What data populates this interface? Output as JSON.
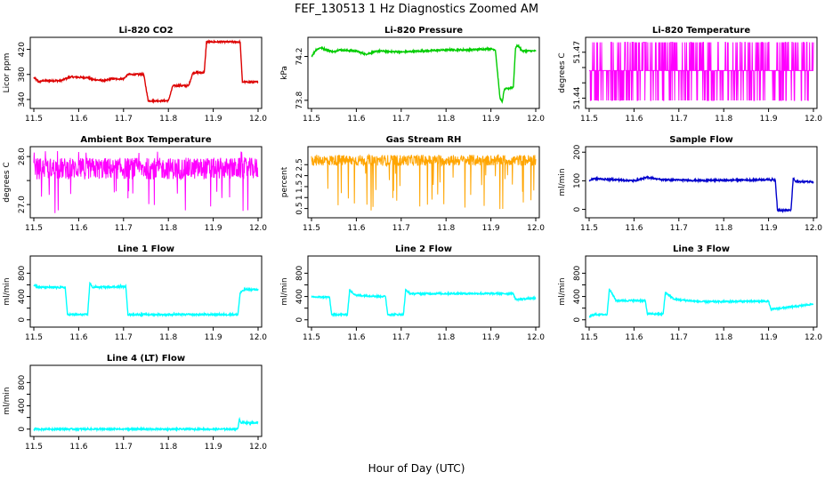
{
  "figure": {
    "title": "FEF_130513  1 Hz Diagnostics Zoomed AM",
    "xlabel": "Hour of Day (UTC)"
  },
  "chart_data": [
    {
      "type": "line",
      "title": "Li-820 CO2",
      "ylabel": "Licor ppm",
      "color": "#dd0000",
      "xlim": [
        11.5,
        12.0
      ],
      "ylim": [
        330,
        435
      ],
      "yticks": [
        340,
        380,
        420
      ],
      "ytick_labels": [
        "340",
        "380",
        "420"
      ],
      "x": [
        11.5,
        11.512,
        11.52,
        11.56,
        11.58,
        11.62,
        11.63,
        11.66,
        11.67,
        11.7,
        11.71,
        11.745,
        11.755,
        11.8,
        11.81,
        11.845,
        11.855,
        11.88,
        11.885,
        11.96,
        11.965,
        12.0
      ],
      "y": [
        375,
        368,
        370,
        370,
        376,
        375,
        372,
        370,
        373,
        373,
        380,
        380,
        338,
        338,
        362,
        362,
        383,
        383,
        432,
        432,
        368,
        368
      ]
    },
    {
      "type": "line",
      "title": "Li-820 Pressure",
      "ylabel": "kPa",
      "color": "#00cc00",
      "xlim": [
        11.5,
        12.0
      ],
      "ylim": [
        73.75,
        74.35
      ],
      "yticks": [
        73.8,
        74.2
      ],
      "ytick_labels": [
        "73.8",
        "74.2"
      ],
      "x": [
        11.5,
        11.51,
        11.52,
        11.55,
        11.56,
        11.6,
        11.62,
        11.65,
        11.7,
        11.75,
        11.8,
        11.85,
        11.9,
        11.91,
        11.92,
        11.925,
        11.93,
        11.95,
        11.955,
        11.96,
        11.97,
        12.0
      ],
      "y": [
        74.2,
        74.26,
        74.28,
        74.24,
        74.26,
        74.25,
        74.22,
        74.25,
        74.24,
        74.25,
        74.26,
        74.26,
        74.27,
        74.26,
        73.83,
        73.78,
        73.9,
        73.92,
        74.28,
        74.3,
        74.25,
        74.25
      ]
    },
    {
      "type": "line",
      "title": "Li-820 Temperature",
      "ylabel": "degrees C",
      "color": "#ff00ff",
      "xlim": [
        11.5,
        12.0
      ],
      "ylim": [
        51.435,
        51.478
      ],
      "yticks": [
        51.44,
        51.45,
        51.46,
        51.47
      ],
      "ytick_labels": [
        "51.44",
        "",
        "",
        "51.47"
      ],
      "x": [
        11.5,
        12.0
      ],
      "y": [
        51.458,
        51.458
      ],
      "low": 51.4385,
      "high": 51.4765
    },
    {
      "type": "line",
      "title": "Ambient Box Temperature",
      "ylabel": "degrees C",
      "color": "#ff00ff",
      "xlim": [
        11.5,
        12.0
      ],
      "ylim": [
        26.78,
        28.15
      ],
      "yticks": [
        27.0,
        27.5,
        28.0
      ],
      "ytick_labels": [
        "27.0",
        "",
        "28.0"
      ],
      "x": [
        11.5,
        12.0
      ],
      "y": [
        27.75,
        27.75
      ],
      "low": 26.8,
      "high": 28.12
    },
    {
      "type": "line",
      "title": "Gas Stream RH",
      "ylabel": "percent",
      "color": "#ffa500",
      "xlim": [
        11.5,
        12.0
      ],
      "ylim": [
        0.2,
        3.2
      ],
      "yticks": [
        0.5,
        1.0,
        1.5,
        2.0,
        2.5
      ],
      "ytick_labels": [
        "0.5",
        "1",
        "1.5",
        "2",
        "2.5"
      ],
      "x": [
        11.5,
        12.0
      ],
      "y": [
        2.7,
        2.7
      ],
      "low": 0.3,
      "high": 3.1
    },
    {
      "type": "line",
      "title": "Sample Flow",
      "ylabel": "ml/min",
      "color": "#0000cc",
      "xlim": [
        11.5,
        12.0
      ],
      "ylim": [
        -20,
        210
      ],
      "yticks": [
        0,
        100,
        200
      ],
      "ytick_labels": [
        "0",
        "100",
        "200"
      ],
      "x": [
        11.5,
        11.51,
        11.6,
        11.63,
        11.66,
        11.75,
        11.8,
        11.9,
        11.915,
        11.92,
        11.95,
        11.955,
        11.96,
        12.0
      ],
      "y": [
        100,
        108,
        100,
        112,
        104,
        101,
        102,
        104,
        103,
        -3,
        -3,
        110,
        97,
        97
      ]
    },
    {
      "type": "line",
      "title": "Line 1 Flow",
      "ylabel": "ml/min",
      "color": "#00ffff",
      "xlim": [
        11.5,
        12.0
      ],
      "ylim": [
        -80,
        1050
      ],
      "yticks": [
        0,
        200,
        400,
        600,
        800
      ],
      "ytick_labels": [
        "0",
        "",
        "400",
        "",
        "800"
      ],
      "x": [
        11.5,
        11.51,
        11.57,
        11.575,
        11.62,
        11.625,
        11.63,
        11.705,
        11.71,
        11.955,
        11.96,
        11.97,
        12.0
      ],
      "y": [
        600,
        560,
        555,
        90,
        90,
        640,
        560,
        570,
        90,
        90,
        460,
        520,
        520
      ]
    },
    {
      "type": "line",
      "title": "Line 2 Flow",
      "ylabel": "ml/min",
      "color": "#00ffff",
      "xlim": [
        11.5,
        12.0
      ],
      "ylim": [
        -80,
        1050
      ],
      "yticks": [
        0,
        200,
        400,
        600,
        800
      ],
      "ytick_labels": [
        "0",
        "",
        "400",
        "",
        "800"
      ],
      "x": [
        11.5,
        11.54,
        11.545,
        11.58,
        11.585,
        11.6,
        11.665,
        11.67,
        11.705,
        11.71,
        11.72,
        11.95,
        11.955,
        12.0
      ],
      "y": [
        390,
        390,
        90,
        90,
        500,
        420,
        400,
        90,
        90,
        510,
        450,
        450,
        350,
        370
      ]
    },
    {
      "type": "line",
      "title": "Line 3 Flow",
      "ylabel": "ml/min",
      "color": "#00ffff",
      "xlim": [
        11.5,
        12.0
      ],
      "ylim": [
        -80,
        1050
      ],
      "yticks": [
        0,
        200,
        400,
        600,
        800
      ],
      "ytick_labels": [
        "0",
        "",
        "400",
        "",
        "800"
      ],
      "x": [
        11.5,
        11.51,
        11.54,
        11.545,
        11.56,
        11.625,
        11.63,
        11.665,
        11.67,
        11.69,
        11.75,
        11.9,
        11.905,
        11.95,
        12.0
      ],
      "y": [
        50,
        90,
        90,
        530,
        330,
        330,
        100,
        100,
        470,
        350,
        310,
        320,
        180,
        220,
        270
      ]
    },
    {
      "type": "line",
      "title": "Line 4 (LT) Flow",
      "ylabel": "ml/min",
      "color": "#00ffff",
      "xlim": [
        11.5,
        12.0
      ],
      "ylim": [
        -80,
        1050
      ],
      "yticks": [
        0,
        200,
        400,
        600,
        800
      ],
      "ytick_labels": [
        "0",
        "",
        "400",
        "",
        "800"
      ],
      "x": [
        11.5,
        11.955,
        11.958,
        11.962,
        12.0
      ],
      "y": [
        0,
        0,
        180,
        110,
        110
      ]
    }
  ],
  "xtick_labels": [
    "11.5",
    "11.6",
    "11.7",
    "11.8",
    "11.9",
    "12.0"
  ]
}
